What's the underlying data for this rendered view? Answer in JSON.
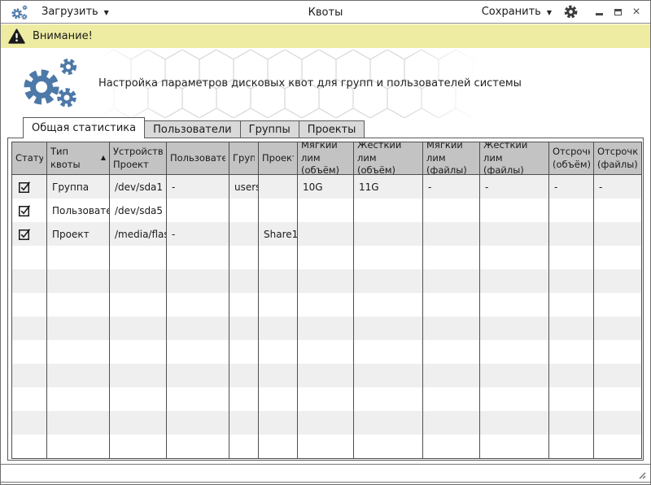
{
  "titlebar": {
    "title": "Квоты",
    "load_label": "Загрузить",
    "save_label": "Сохранить"
  },
  "warning": {
    "text": "Внимание!"
  },
  "header": {
    "description": "Настройка параметров дисковых квот для групп и пользователей системы"
  },
  "tabs": [
    {
      "label": "Общая статистика",
      "active": true
    },
    {
      "label": "Пользователи",
      "active": false
    },
    {
      "label": "Группы",
      "active": false
    },
    {
      "label": "Проекты",
      "active": false
    }
  ],
  "table": {
    "columns": [
      {
        "label": "Стату"
      },
      {
        "label": "Тип квоты",
        "sort": "asc"
      },
      {
        "label": "Устройство/\nПроект"
      },
      {
        "label": "Пользовате."
      },
      {
        "label": "Группа"
      },
      {
        "label": "Проект"
      },
      {
        "label": "Мягкий лим\n(объём)"
      },
      {
        "label": "Жесткий лим\n(объём)"
      },
      {
        "label": "Мягкий лим\n(файлы)"
      },
      {
        "label": "Жесткий лим\n(файлы)"
      },
      {
        "label": "Отсрочк\n(объём)"
      },
      {
        "label": "Отсрочк\n(файлы)"
      }
    ],
    "rows": [
      {
        "checked": true,
        "cells": [
          "Группа",
          "/dev/sda1",
          "-",
          "users",
          "",
          "10G",
          "11G",
          "-",
          "-",
          "-",
          "-"
        ]
      },
      {
        "checked": true,
        "cells": [
          "Пользовате.",
          "/dev/sda5",
          "",
          "",
          "",
          "",
          "",
          "",
          "",
          "",
          ""
        ]
      },
      {
        "checked": true,
        "cells": [
          "Проект",
          "/media/flas",
          "-",
          "",
          "Share1",
          "",
          "",
          "",
          "",
          "",
          ""
        ]
      }
    ],
    "empty_rows": 9
  },
  "icons": {
    "chevron_down": "▼",
    "sort_asc": "▲",
    "close_glyph": "×"
  },
  "colors": {
    "accent_blue": "#4d79a8",
    "warning_bg": "#eeeca2",
    "table_header_bg": "#c3c3c3",
    "row_alt_bg": "#efefef",
    "grid_line": "#4f4f4f"
  }
}
